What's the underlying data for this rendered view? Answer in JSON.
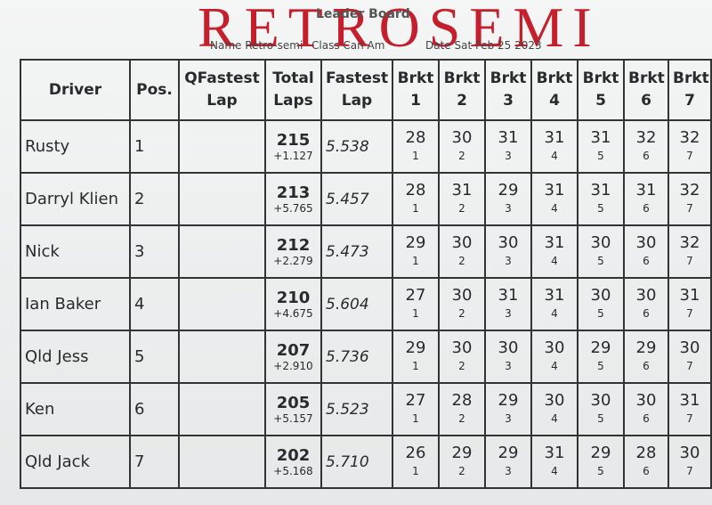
{
  "handwritten_title": "RETROSEMI",
  "header": {
    "title": "Leader Board",
    "name": "Name Retro-semi",
    "class": "Class Can Am",
    "date": "Date Sat Feb 25 2023"
  },
  "table": {
    "columns": [
      "Driver",
      "Pos.",
      "QFastest Lap",
      "Total Laps",
      "Fastest Lap",
      "Brkt 1",
      "Brkt 2",
      "Brkt 3",
      "Brkt 4",
      "Brkt 5",
      "Brkt 6",
      "Brkt 7"
    ],
    "rows": [
      {
        "driver": "Rusty",
        "pos": "1",
        "total_laps": "215",
        "gap": "+1.127",
        "fastest_lap": "5.538",
        "brackets": [
          {
            "laps": "28",
            "number": "1"
          },
          {
            "laps": "30",
            "number": "2"
          },
          {
            "laps": "31",
            "number": "3"
          },
          {
            "laps": "31",
            "number": "4"
          },
          {
            "laps": "31",
            "number": "5"
          },
          {
            "laps": "32",
            "number": "6"
          },
          {
            "laps": "32",
            "number": "7"
          }
        ]
      },
      {
        "driver": "Darryl Klien",
        "pos": "2",
        "total_laps": "213",
        "gap": "+5.765",
        "fastest_lap": "5.457",
        "brackets": [
          {
            "laps": "28",
            "number": "1"
          },
          {
            "laps": "31",
            "number": "2"
          },
          {
            "laps": "29",
            "number": "3"
          },
          {
            "laps": "31",
            "number": "4"
          },
          {
            "laps": "31",
            "number": "5"
          },
          {
            "laps": "31",
            "number": "6"
          },
          {
            "laps": "32",
            "number": "7"
          }
        ]
      },
      {
        "driver": "Nick",
        "pos": "3",
        "total_laps": "212",
        "gap": "+2.279",
        "fastest_lap": "5.473",
        "brackets": [
          {
            "laps": "29",
            "number": "1"
          },
          {
            "laps": "30",
            "number": "2"
          },
          {
            "laps": "30",
            "number": "3"
          },
          {
            "laps": "31",
            "number": "4"
          },
          {
            "laps": "30",
            "number": "5"
          },
          {
            "laps": "30",
            "number": "6"
          },
          {
            "laps": "32",
            "number": "7"
          }
        ]
      },
      {
        "driver": "Ian Baker",
        "pos": "4",
        "total_laps": "210",
        "gap": "+4.675",
        "fastest_lap": "5.604",
        "brackets": [
          {
            "laps": "27",
            "number": "1"
          },
          {
            "laps": "30",
            "number": "2"
          },
          {
            "laps": "31",
            "number": "3"
          },
          {
            "laps": "31",
            "number": "4"
          },
          {
            "laps": "30",
            "number": "5"
          },
          {
            "laps": "30",
            "number": "6"
          },
          {
            "laps": "31",
            "number": "7"
          }
        ]
      },
      {
        "driver": "Qld Jess",
        "pos": "5",
        "total_laps": "207",
        "gap": "+2.910",
        "fastest_lap": "5.736",
        "brackets": [
          {
            "laps": "29",
            "number": "1"
          },
          {
            "laps": "30",
            "number": "2"
          },
          {
            "laps": "30",
            "number": "3"
          },
          {
            "laps": "30",
            "number": "4"
          },
          {
            "laps": "29",
            "number": "5"
          },
          {
            "laps": "29",
            "number": "6"
          },
          {
            "laps": "30",
            "number": "7"
          }
        ]
      },
      {
        "driver": "Ken",
        "pos": "6",
        "total_laps": "205",
        "gap": "+5.157",
        "fastest_lap": "5.523",
        "brackets": [
          {
            "laps": "27",
            "number": "1"
          },
          {
            "laps": "28",
            "number": "2"
          },
          {
            "laps": "29",
            "number": "3"
          },
          {
            "laps": "30",
            "number": "4"
          },
          {
            "laps": "30",
            "number": "5"
          },
          {
            "laps": "30",
            "number": "6"
          },
          {
            "laps": "31",
            "number": "7"
          }
        ]
      },
      {
        "driver": "Qld Jack",
        "pos": "7",
        "total_laps": "202",
        "gap": "+5.168",
        "fastest_lap": "5.710",
        "brackets": [
          {
            "laps": "26",
            "number": "1"
          },
          {
            "laps": "29",
            "number": "2"
          },
          {
            "laps": "29",
            "number": "3"
          },
          {
            "laps": "31",
            "number": "4"
          },
          {
            "laps": "29",
            "number": "5"
          },
          {
            "laps": "28",
            "number": "6"
          },
          {
            "laps": "30",
            "number": "7"
          }
        ]
      }
    ]
  }
}
